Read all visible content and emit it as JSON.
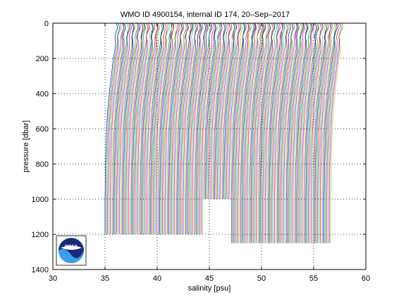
{
  "chart_data": {
    "type": "line",
    "title": "WMO ID 4900154, internal ID 174, 20–Sep–2017",
    "xlabel": "salinity [psu]",
    "ylabel": "pressure [dbar]",
    "xlim": [
      30,
      60
    ],
    "ylim": [
      0,
      1400
    ],
    "y_reversed": true,
    "grid": true,
    "grid_style": "dotted",
    "xticks": [
      30,
      35,
      40,
      45,
      50,
      55,
      60
    ],
    "yticks": [
      0,
      200,
      400,
      600,
      800,
      1000,
      1200,
      1400
    ],
    "series_count": 174,
    "series_offset_psu": 0.125,
    "base_profile": {
      "pressure": [
        0,
        10,
        30,
        50,
        80,
        100,
        150,
        200,
        300,
        400,
        500,
        600,
        800,
        1000,
        1200
      ],
      "salinity": [
        36.05,
        36.15,
        36.2,
        36.05,
        35.95,
        36.0,
        35.95,
        35.8,
        35.6,
        35.4,
        35.25,
        35.15,
        35.05,
        35.0,
        35.0
      ]
    },
    "max_pressure_groups": [
      {
        "from_index": 0,
        "to_index": 75,
        "max_pressure": 1200
      },
      {
        "from_index": 76,
        "to_index": 96,
        "max_pressure": 1000
      },
      {
        "from_index": 97,
        "to_index": 121,
        "max_pressure": 1250
      },
      {
        "from_index": 122,
        "to_index": 173,
        "max_pressure": 1250
      }
    ],
    "colors": [
      "#0000ff",
      "#00aa00",
      "#ff0000",
      "#00bfbf",
      "#bf00bf",
      "#bfbf00",
      "#404040"
    ]
  },
  "logo": {
    "text": "NOAA",
    "colors": {
      "navy": "#1a2a78",
      "sky": "#37a0e6",
      "white": "#ffffff"
    }
  }
}
